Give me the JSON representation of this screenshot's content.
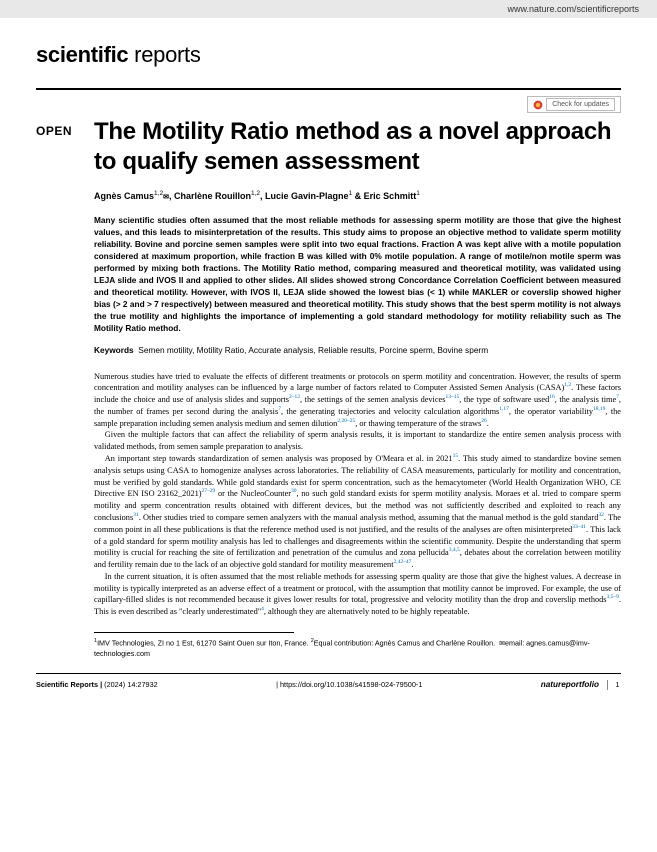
{
  "top_bar": {
    "url": "www.nature.com/scientificreports"
  },
  "journal": {
    "bold": "scientific",
    "light": " reports"
  },
  "check_updates": {
    "label": "Check for updates"
  },
  "open_label": "OPEN",
  "title": "The Motility Ratio method as a novel approach to qualify semen assessment",
  "authors_html": "Agnès Camus<sup>1,2</sup><span class=\"envelope\">✉</span>, Charlène Rouillon<sup>1,2</sup>, Lucie Gavin-Plagne<sup>1</sup> & Eric Schmitt<sup>1</sup>",
  "abstract": "Many scientific studies often assumed that the most reliable methods for assessing sperm motility are those that give the highest values, and this leads to misinterpretation of the results. This study aims to propose an objective method to validate sperm motility reliability. Bovine and porcine semen samples were split into two equal fractions. Fraction A was kept alive with a motile population considered at maximum proportion, while fraction B was killed with 0% motile population. A range of motile/non motile sperm was performed by mixing both fractions. The Motility Ratio method, comparing measured and theoretical motility, was validated using LEJA slide and IVOS II and applied to other slides. All slides showed strong Concordance Correlation Coefficient between measured and theoretical motility. However, with IVOS II, LEJA slide showed the lowest bias (< 1) while MAKLER or coverslip showed higher bias (> 2 and > 7 respectively) between measured and theoretical motility. This study shows that the best sperm motility is not always the true motility and highlights the importance of implementing a gold standard methodology for motility reliability such as The Motility Ratio method.",
  "keywords": {
    "label": "Keywords",
    "text": "Semen motility, Motility Ratio, Accurate analysis, Reliable results, Porcine sperm, Bovine sperm"
  },
  "paragraphs": [
    "Numerous studies have tried to evaluate the effects of different treatments or protocols on sperm motility and concentration. However, the results of sperm concentration and motility analyses can be influenced by a large number of factors related to Computer Assisted Semen Analysis (CASA)<sup>1,2</sup>. These factors include the choice and use of analysis slides and supports<sup>2–12</sup>, the settings of the semen analysis devices<sup>13–15</sup>, the type of software used<sup>16</sup>, the analysis time<sup>7</sup>, the number of frames per second during the analysis<sup>7</sup>, the generating trajectories and velocity calculation algorithms<sup>1,17</sup>, the operator variability<sup>18,19</sup>, the sample preparation including semen analysis medium and semen dilution<sup>2,20–25</sup>, or thawing temperature of the straws<sup>26</sup>.",
    "Given the multiple factors that can affect the reliability of sperm analysis results, it is important to standardize the entire semen analysis process with validated methods, from semen sample preparation to analysis.",
    "An important step towards standardization of semen analysis was proposed by O'Meara et al. in 2021<sup>15</sup>. This study aimed to standardize bovine semen analysis setups using CASA to homogenize analyses across laboratories. The reliability of CASA measurements, particularly for motility and concentration, must be verified by gold standards. While gold standards exist for sperm concentration, such as the hemacytometer (World Health Organization WHO, CE Directive EN ISO 23162_2021)<sup>27–29</sup> or the NucleoCounter<sup>30</sup>, no such gold standard exists for sperm motility analysis. Moraes et al. tried to compare sperm motility and sperm concentration results obtained with different devices, but the method was not sufficiently described and exploited to reach any conclusions<sup>31</sup>. Other studies tried to compare semen analyzers with the manual analysis method, assuming that the manual method is the gold standard<sup>32</sup>. The common point in all these publications is that the reference method used is not justified, and the results of the analyses are often misinterpreted<sup>33–41</sup>. This lack of a gold standard for sperm motility analysis has led to challenges and disagreements within the scientific community. Despite the understanding that sperm motility is crucial for reaching the site of fertilization and penetration of the cumulus and zona pellucida<sup>3,4,5</sup>, debates about the correlation between motility and fertility remain due to the lack of an objective gold standard for motility measurement<sup>2,42–47</sup>.",
    "In the current situation, it is often assumed that the most reliable methods for assessing sperm quality are those that give the highest values. A decrease in motility is typically interpreted as an adverse effect of a treatment or protocol, with the assumption that motility cannot be improved. For example, the use of capillary-filled slides is not recommended because it gives lower results for total, progressive and velocity motility than the drop and coverslip methods<sup>3,5–9</sup>. This is even described as \"clearly underestimated\"<sup>4</sup>, although they are alternatively noted to be highly repeatable."
  ],
  "affiliation": "<sup>1</sup>IMV Technologies, ZI no 1 Est, 61270 Saint Ouen sur Iton, France. <sup>2</sup>Equal contribution: Agnès Camus and Charlène Rouillon.&nbsp;&nbsp;<span class=\"envelope\">✉</span>email: agnes.camus@imv-technologies.com",
  "footer": {
    "left": "Scientific Reports |",
    "citation": "(2024) 14:27932",
    "doi": "| https://doi.org/10.1038/s41598-024-79500-1",
    "publisher": "natureportfolio",
    "page": "1"
  },
  "colors": {
    "link_blue": "#0066b3",
    "topbar_bg": "#e8e8e8",
    "text": "#000000"
  }
}
